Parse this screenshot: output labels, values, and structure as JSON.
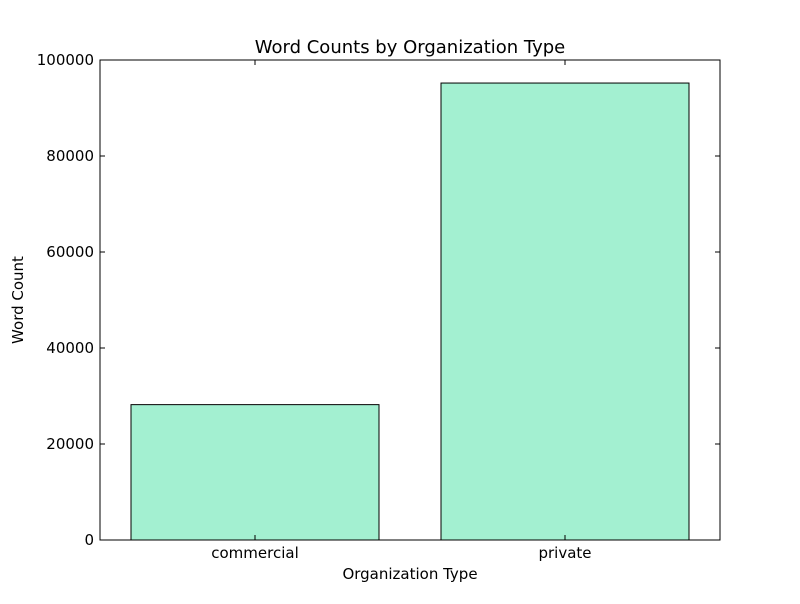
{
  "chart_data": {
    "type": "bar",
    "title": "Word Counts by Organization Type",
    "xlabel": "Organization Type",
    "ylabel": "Word Count",
    "categories": [
      "commercial",
      "private"
    ],
    "values": [
      28200,
      95200
    ],
    "ylim": [
      0,
      100000
    ],
    "yticks": [
      0,
      20000,
      40000,
      60000,
      80000,
      100000
    ],
    "ytick_labels": [
      "0",
      "20000",
      "40000",
      "60000",
      "80000",
      "100000"
    ],
    "bar_color": "#a3f0d1",
    "edge_color": "#000000",
    "grid": false
  }
}
